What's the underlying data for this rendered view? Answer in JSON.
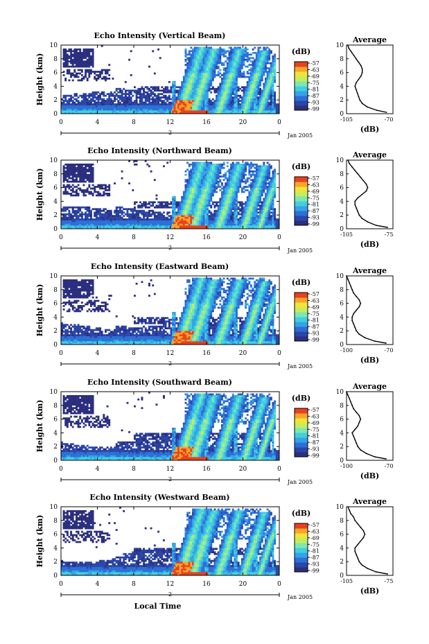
{
  "chart_data": [
    {
      "type": "heatmap",
      "title": "Echo Intensity (Vertical Beam)",
      "ylabel": "Height (km)",
      "xlim": [
        0,
        24
      ],
      "ylim": [
        0,
        10
      ],
      "xticks": [
        "0",
        "4",
        "8",
        "12",
        "16",
        "20",
        "0"
      ],
      "yticks": [
        "0",
        "2",
        "4",
        "6",
        "8",
        "10"
      ],
      "day_label": "2",
      "date_label": "Jan 2005",
      "colorbar": {
        "title": "(dB)",
        "ticks": [
          "-57",
          "-63",
          "-69",
          "-75",
          "-81",
          "-87",
          "-93",
          "-99"
        ]
      },
      "profile": {
        "title": "Average",
        "xlabel": "(dB)",
        "xlim": [
          -105,
          -70
        ],
        "xticks": [
          "-105",
          "-70"
        ],
        "yticks": [
          "0",
          "2",
          "4",
          "6",
          "8",
          "10"
        ],
        "height_km": [
          0.2,
          0.5,
          1,
          1.5,
          2,
          2.5,
          3,
          3.5,
          4,
          4.5,
          5,
          5.5,
          6,
          6.5,
          7,
          7.5,
          8,
          8.5,
          9,
          9.5,
          10
        ],
        "db": [
          -72,
          -80,
          -88,
          -92,
          -94,
          -95,
          -96,
          -97,
          -98,
          -97,
          -95,
          -93,
          -92,
          -92,
          -93,
          -95,
          -97,
          -99,
          -101,
          -103,
          -104
        ]
      }
    },
    {
      "type": "heatmap",
      "title": "Echo Intensity (Northward Beam)",
      "ylabel": "Height (km)",
      "xlim": [
        0,
        24
      ],
      "ylim": [
        0,
        10
      ],
      "xticks": [
        "0",
        "4",
        "8",
        "12",
        "16",
        "20",
        "0"
      ],
      "yticks": [
        "0",
        "2",
        "4",
        "6",
        "8",
        "10"
      ],
      "day_label": "2",
      "date_label": "Jan 2005",
      "colorbar": {
        "title": "(dB)",
        "ticks": [
          "-57",
          "-63",
          "-69",
          "-75",
          "-81",
          "-87",
          "-93",
          "-99"
        ]
      },
      "profile": {
        "title": "Average",
        "xlabel": "(dB)",
        "xlim": [
          -105,
          -75
        ],
        "xticks": [
          "-105",
          "-75"
        ],
        "yticks": [
          "0",
          "2",
          "4",
          "6",
          "8",
          "10"
        ],
        "height_km": [
          0.2,
          0.5,
          1,
          1.5,
          2,
          2.5,
          3,
          3.5,
          4,
          4.5,
          5,
          5.5,
          6,
          6.5,
          7,
          7.5,
          8,
          8.5,
          9,
          9.5,
          10
        ],
        "db": [
          -76,
          -84,
          -90,
          -94,
          -96,
          -97,
          -98,
          -99,
          -99,
          -97,
          -94,
          -91,
          -90,
          -91,
          -93,
          -95,
          -97,
          -99,
          -101,
          -103,
          -104
        ]
      }
    },
    {
      "type": "heatmap",
      "title": "Echo Intensity (Eastward Beam)",
      "ylabel": "Height (km)",
      "xlim": [
        0,
        24
      ],
      "ylim": [
        0,
        10
      ],
      "xticks": [
        "0",
        "4",
        "8",
        "12",
        "16",
        "20",
        "0"
      ],
      "yticks": [
        "0",
        "2",
        "4",
        "6",
        "8",
        "10"
      ],
      "day_label": "2",
      "date_label": "Jan 2005",
      "colorbar": {
        "title": "(dB)",
        "ticks": [
          "-57",
          "-63",
          "-69",
          "-75",
          "-81",
          "-87",
          "-93",
          "-99"
        ]
      },
      "profile": {
        "title": "Average",
        "xlabel": "(dB)",
        "xlim": [
          -100,
          -70
        ],
        "xticks": [
          "-100",
          "-70"
        ],
        "yticks": [
          "0",
          "2",
          "4",
          "6",
          "8",
          "10"
        ],
        "height_km": [
          0.2,
          0.5,
          1,
          1.5,
          2,
          2.5,
          3,
          3.5,
          4,
          4.5,
          5,
          5.5,
          6,
          6.5,
          7,
          7.5,
          8,
          8.5,
          9,
          9.5,
          10
        ],
        "db": [
          -72,
          -80,
          -87,
          -91,
          -93,
          -94,
          -95,
          -96,
          -96,
          -95,
          -93,
          -91,
          -90,
          -91,
          -93,
          -95,
          -96,
          -97,
          -98,
          -99,
          -100
        ]
      }
    },
    {
      "type": "heatmap",
      "title": "Echo Intensity (Southward Beam)",
      "ylabel": "Height (km)",
      "xlim": [
        0,
        24
      ],
      "ylim": [
        0,
        10
      ],
      "xticks": [
        "0",
        "4",
        "8",
        "12",
        "16",
        "20",
        "0"
      ],
      "yticks": [
        "0",
        "2",
        "4",
        "6",
        "8",
        "10"
      ],
      "day_label": "2",
      "date_label": "Jan 2005",
      "colorbar": {
        "title": "(dB)",
        "ticks": [
          "-57",
          "-63",
          "-69",
          "-75",
          "-81",
          "-87",
          "-93",
          "-99"
        ]
      },
      "profile": {
        "title": "Average",
        "xlabel": "(dB)",
        "xlim": [
          -100,
          -70
        ],
        "xticks": [
          "-100",
          "-70"
        ],
        "yticks": [
          "0",
          "2",
          "4",
          "6",
          "8",
          "10"
        ],
        "height_km": [
          0.2,
          0.5,
          1,
          1.5,
          2,
          2.5,
          3,
          3.5,
          4,
          4.5,
          5,
          5.5,
          6,
          6.5,
          7,
          7.5,
          8,
          8.5,
          9,
          9.5,
          10
        ],
        "db": [
          -72,
          -80,
          -86,
          -90,
          -92,
          -93,
          -94,
          -95,
          -96,
          -94,
          -92,
          -91,
          -90,
          -91,
          -93,
          -95,
          -96,
          -97,
          -98,
          -99,
          -100
        ]
      }
    },
    {
      "type": "heatmap",
      "title": "Echo Intensity (Westward Beam)",
      "ylabel": "Height (km)",
      "xlabel": "Local Time",
      "xlim": [
        0,
        24
      ],
      "ylim": [
        0,
        10
      ],
      "xticks": [
        "0",
        "4",
        "8",
        "12",
        "16",
        "20",
        "0"
      ],
      "yticks": [
        "0",
        "2",
        "4",
        "6",
        "8",
        "10"
      ],
      "day_label": "2",
      "date_label": "Jan 2005",
      "colorbar": {
        "title": "(dB)",
        "ticks": [
          "-57",
          "-63",
          "-69",
          "-75",
          "-81",
          "-87",
          "-93",
          "-99"
        ]
      },
      "profile": {
        "title": "Average",
        "xlabel": "(dB)",
        "xlim": [
          -105,
          -75
        ],
        "xticks": [
          "-105",
          "-75"
        ],
        "yticks": [
          "0",
          "2",
          "4",
          "6",
          "8",
          "10"
        ],
        "height_km": [
          0.2,
          0.5,
          1,
          1.5,
          2,
          2.5,
          3,
          3.5,
          4,
          4.5,
          5,
          5.5,
          6,
          6.5,
          7,
          7.5,
          8,
          8.5,
          9,
          9.5,
          10
        ],
        "db": [
          -76,
          -84,
          -90,
          -94,
          -96,
          -97,
          -98,
          -99,
          -99,
          -97,
          -95,
          -93,
          -92,
          -93,
          -95,
          -97,
          -99,
          -100,
          -102,
          -103,
          -104
        ]
      }
    }
  ],
  "colormap": [
    "#2b2f7e",
    "#2a46a8",
    "#2c6fd6",
    "#34a3e6",
    "#40d0e0",
    "#7fe6b0",
    "#c6ec5c",
    "#f2e33a",
    "#f8a52a",
    "#e8411e"
  ]
}
